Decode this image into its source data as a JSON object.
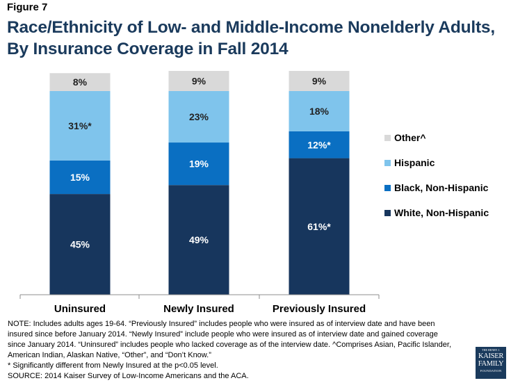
{
  "figure_label": "Figure 7",
  "title_lines": [
    "Race/Ethnicity of Low- and Middle-Income Nonelderly Adults,",
    "By Insurance Coverage in Fall 2014"
  ],
  "chart_data": {
    "type": "bar",
    "stacked": true,
    "title": "Race/Ethnicity of Low- and Middle-Income Nonelderly Adults, By Insurance Coverage in Fall 2014",
    "categories": [
      "Uninsured",
      "Newly Insured",
      "Previously Insured"
    ],
    "series": [
      {
        "name": "White, Non-Hispanic",
        "values": [
          45,
          49,
          61
        ],
        "labels": [
          "45%",
          "49%",
          "61%*"
        ],
        "color": "#17365d"
      },
      {
        "name": "Black, Non-Hispanic",
        "values": [
          15,
          19,
          12
        ],
        "labels": [
          "15%",
          "19%",
          "12%*"
        ],
        "color": "#0a6fc2"
      },
      {
        "name": "Hispanic",
        "values": [
          31,
          23,
          18
        ],
        "labels": [
          "31%*",
          "23%",
          "18%"
        ],
        "color": "#7fc4ec"
      },
      {
        "name": "Other^",
        "values": [
          8,
          9,
          9
        ],
        "labels": [
          "8%",
          "9%",
          "9%"
        ],
        "color": "#d9d9d9"
      }
    ],
    "legend_order": [
      "Other^",
      "Hispanic",
      "Black, Non-Hispanic",
      "White, Non-Hispanic"
    ],
    "legend_position": "right",
    "ylim": [
      0,
      100
    ],
    "xlabel": "",
    "ylabel": "",
    "grid": false
  },
  "notes_lines": [
    "NOTE: Includes adults ages 19-64. “Previously Insured” includes people who were insured as of interview date and have been",
    "insured since before January 2014. “Newly Insured” include people who were insured as of interview date and gained coverage",
    "since January 2014. “Uninsured” includes people who lacked coverage as of the interview date. ^Comprises Asian, Pacific Islander,",
    "American Indian, Alaskan Native, “Other”, and “Don’t Know.”",
    "* Significantly different from Newly Insured at the p<0.05 level.",
    "SOURCE: 2014 Kaiser Survey of Low-Income Americans and the ACA."
  ],
  "logo": {
    "top": "THE HENRY J.",
    "line1": "KAISER",
    "line2": "FAMILY",
    "bottom": "FOUNDATION"
  }
}
